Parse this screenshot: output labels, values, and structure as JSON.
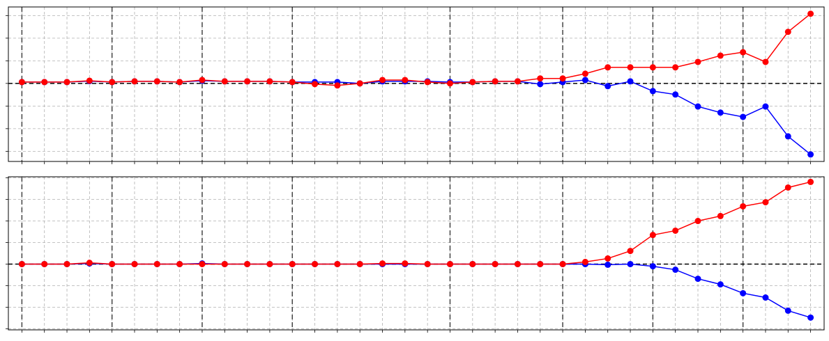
{
  "chart_data": [
    {
      "type": "line",
      "x": [
        0,
        1,
        2,
        3,
        4,
        5,
        6,
        7,
        8,
        9,
        10,
        11,
        12,
        13,
        14,
        15,
        16,
        17,
        18,
        19,
        20,
        21,
        22,
        23,
        24,
        25,
        26,
        27,
        28,
        29,
        30,
        31,
        32,
        33,
        34,
        35
      ],
      "series": [
        {
          "color": "#0000ff",
          "values": [
            0.06,
            0.06,
            0.06,
            0.1,
            0.06,
            0.09,
            0.09,
            0.06,
            0.12,
            0.09,
            0.09,
            0.09,
            0.06,
            0.06,
            0.06,
            0,
            0.09,
            0.09,
            0.09,
            0.06,
            0.06,
            0.09,
            0.09,
            -0.03,
            0.06,
            0.15,
            -0.12,
            0.09,
            -0.34,
            -0.49,
            -1.02,
            -1.29,
            -1.48,
            -1.02,
            -2.34,
            -3.14
          ]
        },
        {
          "color": "#ff0000",
          "values": [
            0.06,
            0.06,
            0.06,
            0.12,
            0.06,
            0.09,
            0.09,
            0.06,
            0.15,
            0.09,
            0.09,
            0.09,
            0.06,
            -0.03,
            -0.09,
            0,
            0.15,
            0.15,
            0.06,
            0,
            0.06,
            0.09,
            0.09,
            0.22,
            0.22,
            0.43,
            0.71,
            0.71,
            0.71,
            0.71,
            0.95,
            1.23,
            1.38,
            0.95,
            2.28,
            3.08
          ]
        }
      ],
      "xlim": [
        -0.6,
        35.6
      ],
      "xticks": [
        0,
        1,
        2,
        3,
        4,
        5,
        6,
        7,
        8,
        9,
        10,
        11,
        12,
        13,
        14,
        15,
        16,
        17,
        18,
        19,
        20,
        21,
        22,
        23,
        24,
        25,
        26,
        27,
        28,
        29,
        30,
        31,
        32,
        33,
        34,
        35
      ],
      "ylim": [
        -3.45,
        3.38
      ],
      "yticks": [
        -3,
        -2,
        -1,
        0,
        1,
        2,
        3
      ],
      "grid": true,
      "vlines": [
        0,
        4,
        8,
        12,
        19,
        24,
        28,
        32
      ],
      "hline": 0
    },
    {
      "type": "line",
      "x": [
        0,
        1,
        2,
        3,
        4,
        5,
        6,
        7,
        8,
        9,
        10,
        11,
        12,
        13,
        14,
        15,
        16,
        17,
        18,
        19,
        20,
        21,
        22,
        23,
        24,
        25,
        26,
        27,
        28,
        29,
        30,
        31,
        32,
        33,
        34,
        35
      ],
      "series": [
        {
          "color": "#0000ff",
          "values": [
            0,
            0,
            0,
            0.03,
            0,
            0,
            0,
            0,
            0.03,
            0,
            0,
            0,
            0,
            0,
            0,
            0,
            0,
            0,
            0,
            0,
            0,
            0,
            0,
            0,
            0,
            0,
            -0.03,
            0,
            -0.1,
            -0.26,
            -0.68,
            -0.94,
            -1.35,
            -1.55,
            -2.16,
            -2.48
          ]
        },
        {
          "color": "#ff0000",
          "values": [
            0,
            0,
            0,
            0.06,
            0,
            0,
            0,
            0,
            0,
            0,
            0,
            0,
            0,
            0,
            0,
            0,
            0.03,
            0.03,
            0,
            0,
            0,
            0,
            0,
            0,
            0,
            0.1,
            0.26,
            0.61,
            1.35,
            1.55,
            2.0,
            2.23,
            2.68,
            2.87,
            3.55,
            3.81
          ]
        }
      ],
      "xlim": [
        -0.6,
        35.6
      ],
      "xticks": [
        0,
        1,
        2,
        3,
        4,
        5,
        6,
        7,
        8,
        9,
        10,
        11,
        12,
        13,
        14,
        15,
        16,
        17,
        18,
        19,
        20,
        21,
        22,
        23,
        24,
        25,
        26,
        27,
        28,
        29,
        30,
        31,
        32,
        33,
        34,
        35
      ],
      "ylim": [
        -3.05,
        4.05
      ],
      "yticks": [
        -3,
        -2,
        -1,
        0,
        1,
        2,
        3,
        4
      ],
      "grid": true,
      "vlines": [
        0,
        4,
        8,
        12,
        19,
        24,
        28,
        32
      ],
      "hline": 0
    }
  ]
}
